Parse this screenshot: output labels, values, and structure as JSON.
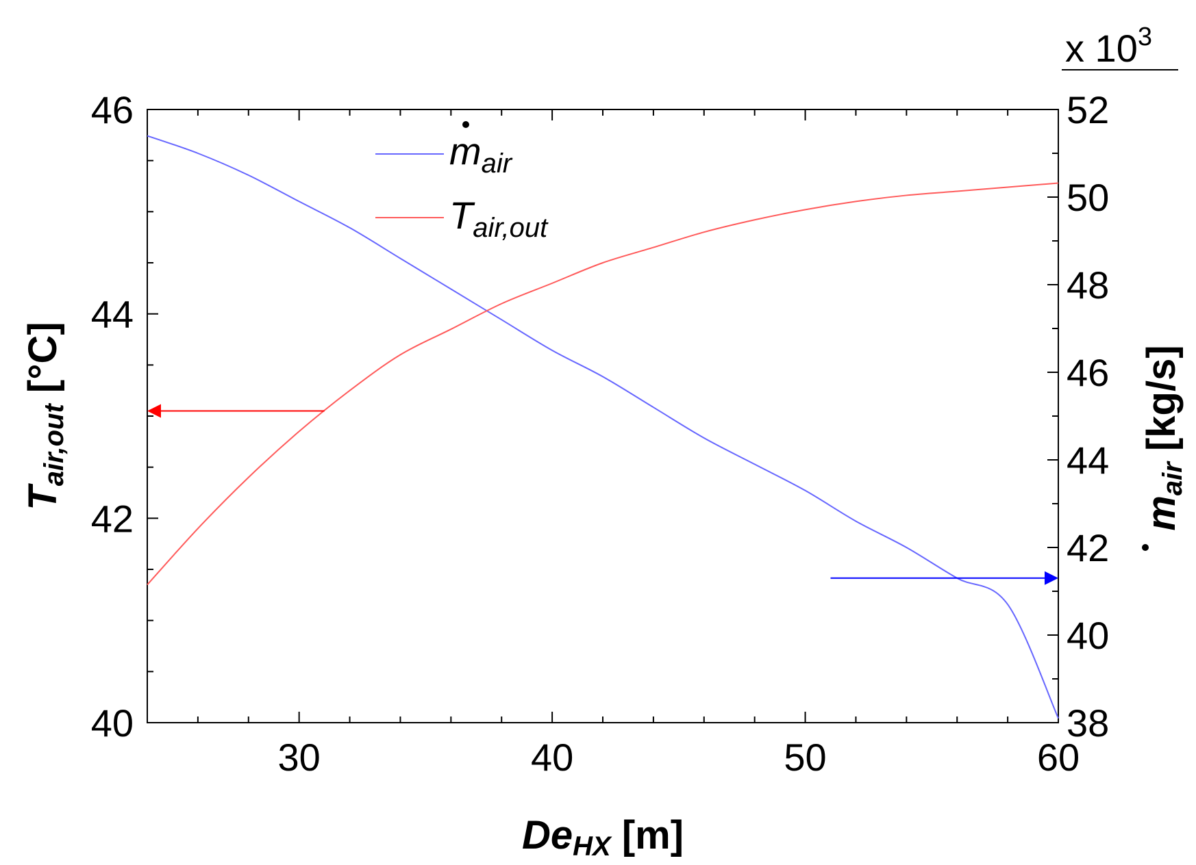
{
  "chart_data": {
    "type": "line",
    "title": "",
    "xlabel": {
      "main": "De",
      "sub": "HX",
      "unit": "[m]"
    },
    "ylabel_left": {
      "main": "T",
      "sub": "air,out",
      "unit": "[°C]"
    },
    "ylabel_right": {
      "main": "m",
      "sub": "air",
      "unit": "[kg/s]"
    },
    "right_axis_multiplier": "x 10",
    "right_axis_multiplier_exp": "3",
    "xlim": [
      24,
      60
    ],
    "ylim_left": [
      40,
      46
    ],
    "ylim_right": [
      38,
      52
    ],
    "x_ticks": [
      "30",
      "40",
      "50",
      "60"
    ],
    "y_ticks_left": [
      "40",
      "42",
      "44",
      "46"
    ],
    "y_ticks_right": [
      "38",
      "40",
      "42",
      "44",
      "46",
      "48",
      "50",
      "52"
    ],
    "legend": {
      "position": "top-left",
      "entries": [
        {
          "label": "m",
          "sub": "air",
          "color": "#6666ff"
        },
        {
          "label": "T",
          "sub": "air,out",
          "color": "#ff5a5a"
        }
      ]
    },
    "series": [
      {
        "name": "m_air",
        "axis": "right",
        "color": "#6666ff",
        "x": [
          24,
          26,
          28,
          30,
          32,
          34,
          36,
          38,
          40,
          42,
          44,
          46,
          48,
          50,
          52,
          54,
          56,
          58,
          60
        ],
        "values": [
          51.4,
          51.0,
          50.5,
          49.9,
          49.3,
          48.6,
          47.9,
          47.2,
          46.5,
          45.9,
          45.2,
          44.5,
          43.9,
          43.3,
          42.6,
          42.0,
          41.3,
          40.7,
          38.1
        ]
      },
      {
        "name": "T_air_out",
        "axis": "left",
        "color": "#ff5a5a",
        "x": [
          24,
          26,
          28,
          30,
          32,
          34,
          36,
          38,
          40,
          42,
          44,
          46,
          48,
          50,
          52,
          54,
          56,
          58,
          60
        ],
        "values": [
          41.35,
          41.9,
          42.4,
          42.85,
          43.25,
          43.6,
          43.85,
          44.1,
          44.3,
          44.5,
          44.65,
          44.8,
          44.92,
          45.02,
          45.1,
          45.16,
          45.2,
          45.24,
          45.28
        ]
      }
    ],
    "annotations": [
      {
        "text": "",
        "direction": "left",
        "color": "#ff0000",
        "x_from": 31,
        "x_to": 24,
        "y": 43.05,
        "axis": "left"
      },
      {
        "text": "",
        "direction": "right",
        "color": "#0000ff",
        "x_from": 51,
        "x_to": 60,
        "y": 41.3,
        "axis": "right"
      }
    ]
  }
}
